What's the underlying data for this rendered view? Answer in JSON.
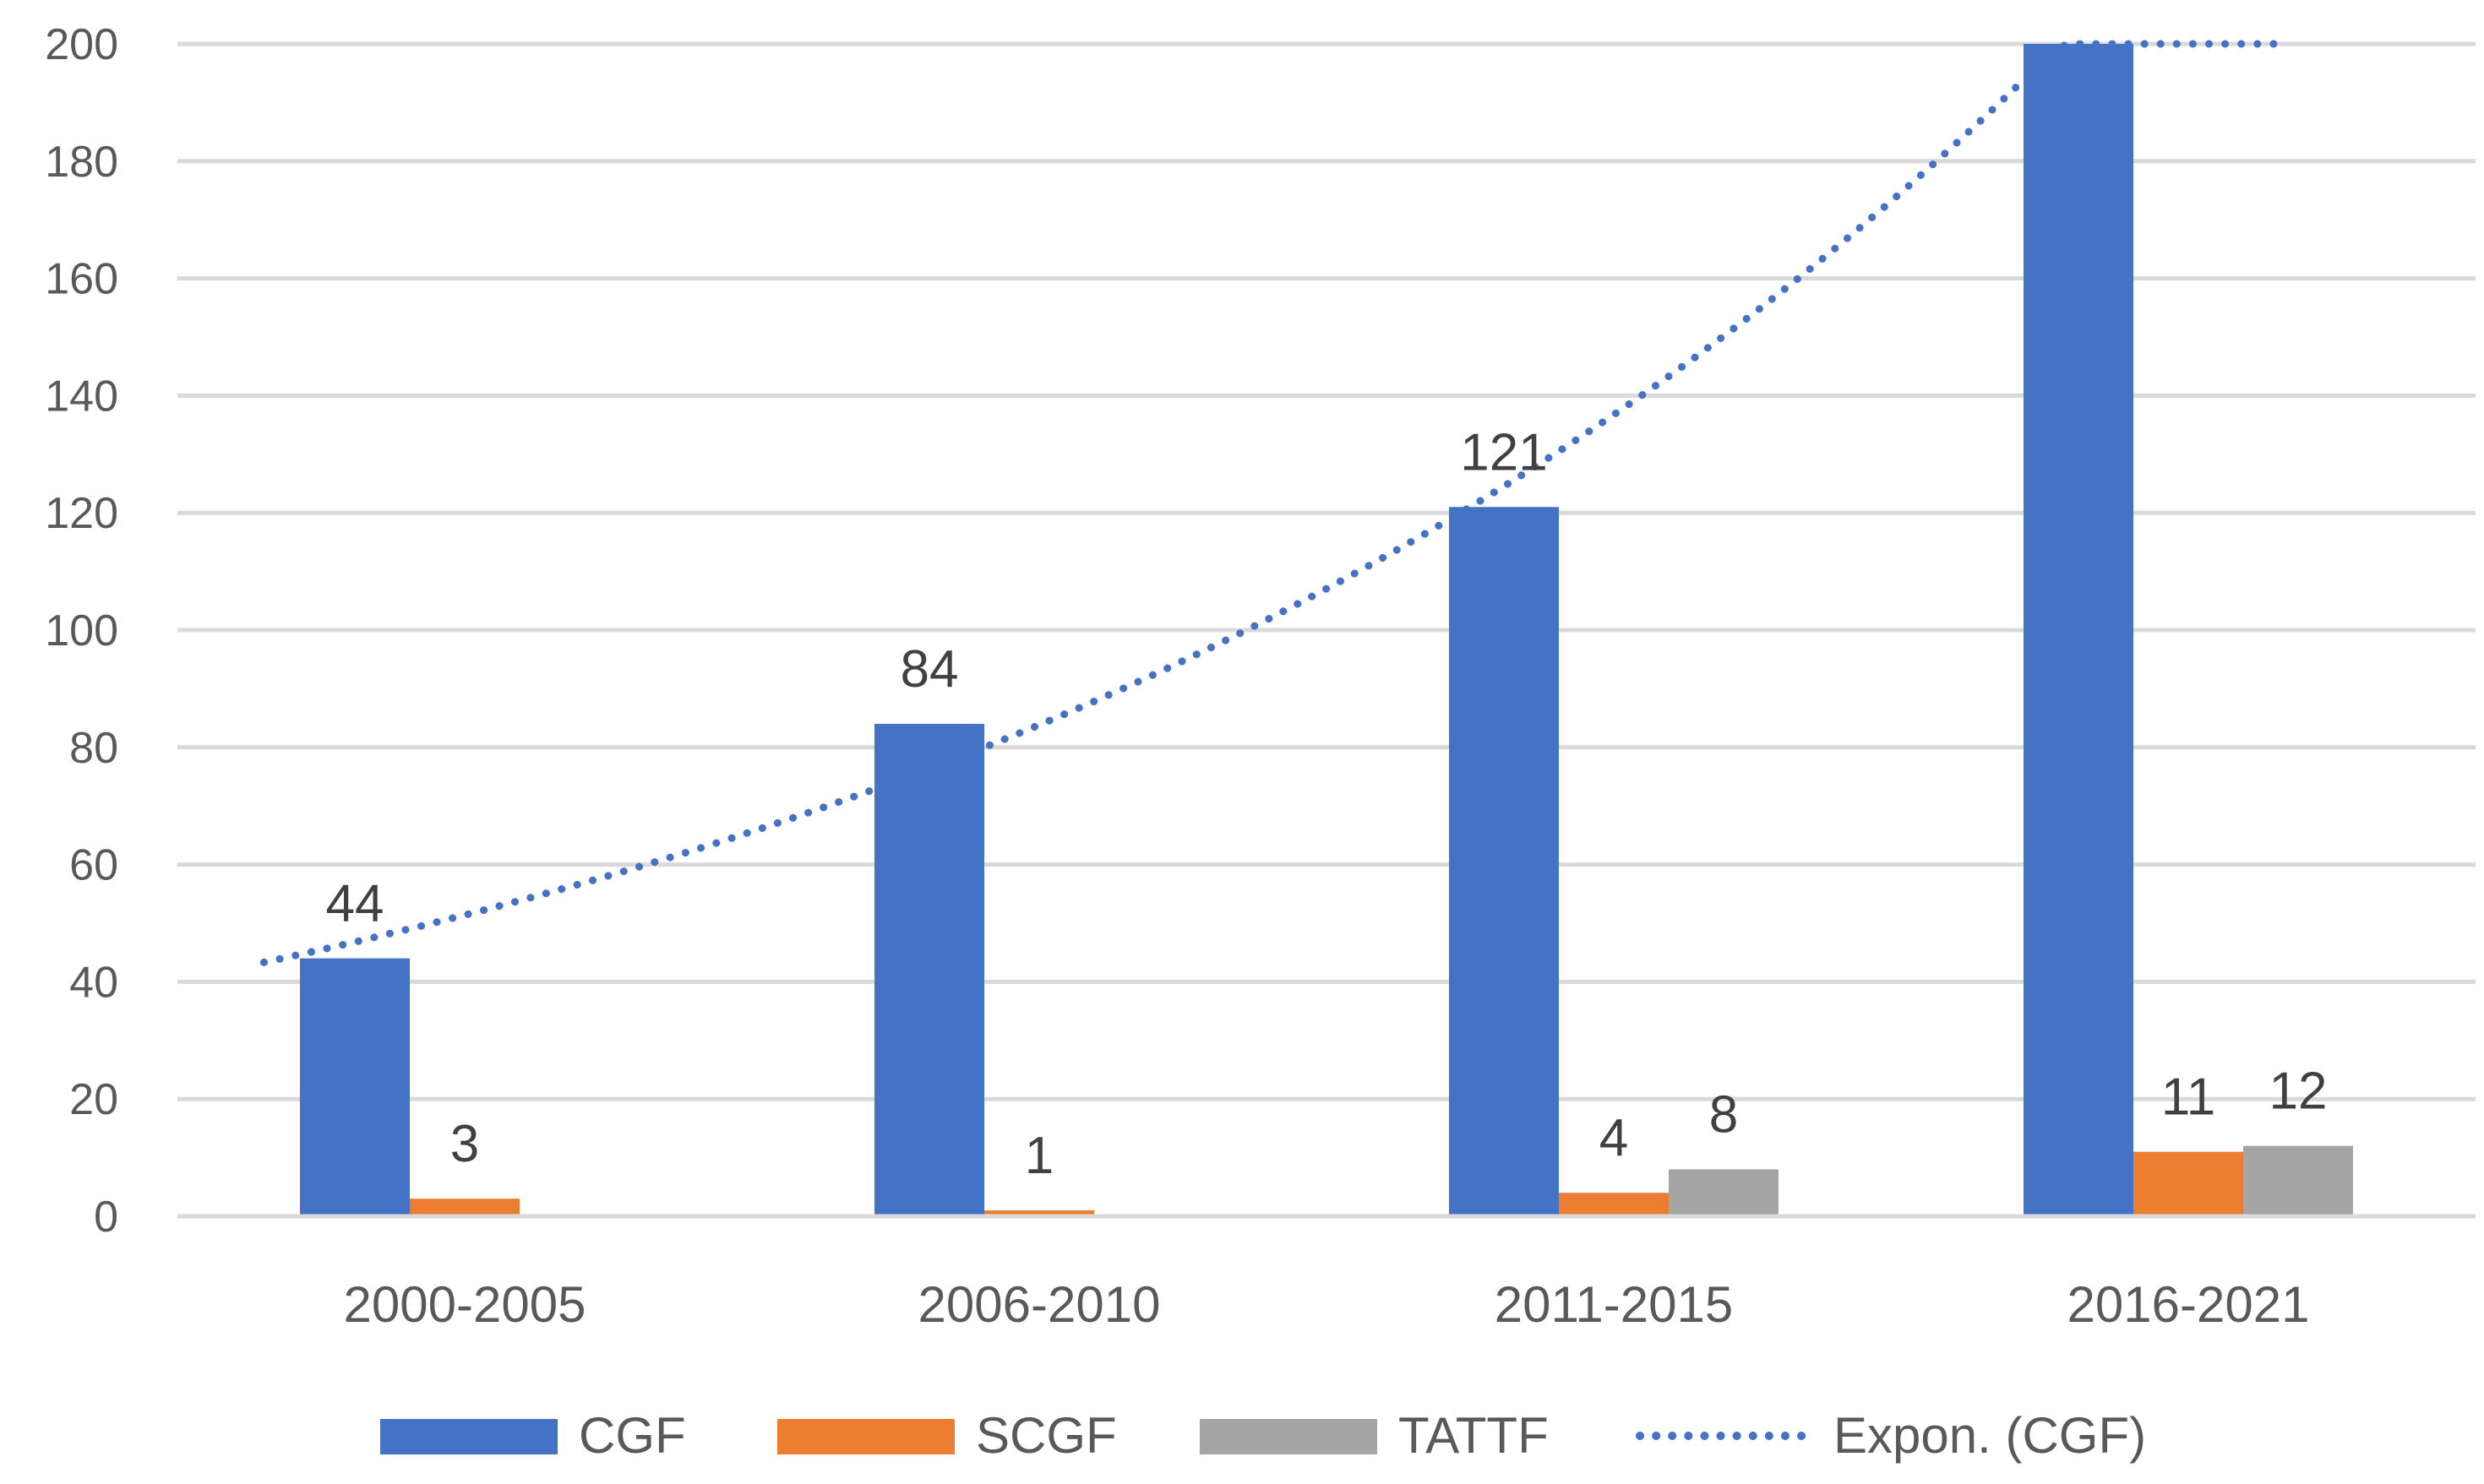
{
  "chart_data": {
    "type": "bar",
    "title": "",
    "xlabel": "",
    "ylabel": "",
    "ylim": [
      0,
      200
    ],
    "yticks": [
      0,
      20,
      40,
      60,
      80,
      100,
      120,
      140,
      160,
      180,
      200
    ],
    "ytick_labels": [
      "0",
      "20",
      "40",
      "60",
      "80",
      "100",
      "120",
      "140",
      "160",
      "180",
      "200"
    ],
    "grid": true,
    "legend_position": "bottom",
    "categories": [
      "2000-2005",
      "2006-2010",
      "2011-2015",
      "2016-2021"
    ],
    "series": [
      {
        "name": "CGF",
        "values": [
          44,
          84,
          121,
          200
        ],
        "labels": [
          "44",
          "84",
          "121",
          ""
        ],
        "color": "#4472c4"
      },
      {
        "name": "SCGF",
        "values": [
          3,
          1,
          4,
          11
        ],
        "labels": [
          "3",
          "1",
          "4",
          "11"
        ],
        "color": "#ed7d31"
      },
      {
        "name": "TATTF",
        "values": [
          null,
          null,
          8,
          12
        ],
        "labels": [
          "",
          "",
          "8",
          "12"
        ],
        "color": "#a5a5a5"
      }
    ],
    "trendline": {
      "name": "Expon. (CGF)",
      "type": "exponential",
      "of_series": "CGF",
      "color": "#4472c4",
      "points": [
        {
          "x": 1,
          "y": 46
        },
        {
          "x": 2,
          "y": 71
        },
        {
          "x": 3,
          "y": 117
        },
        {
          "x": 4,
          "y": 199
        }
      ],
      "x_start": 0.93,
      "x_end": 4.45
    }
  }
}
